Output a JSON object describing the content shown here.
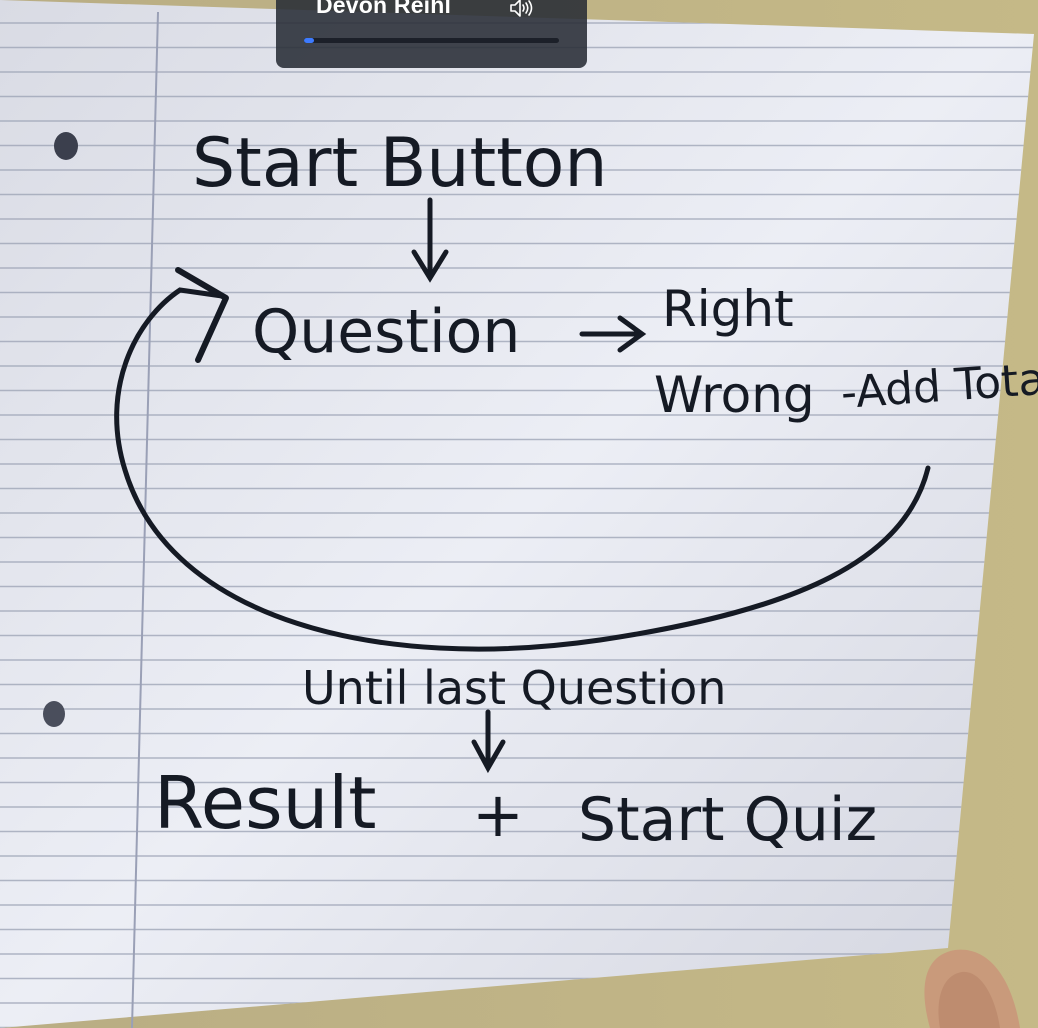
{
  "video": {
    "participant_name": "Devon Reihl",
    "progress_percent": 4
  },
  "icons": {
    "speaker": "speaker-volume-icon"
  },
  "colors": {
    "background": "#b9ad84",
    "paper": "#e6e7ef",
    "ink": "#151a24",
    "accent": "#3d7bff"
  },
  "sketch": {
    "start_button": "Start Button",
    "question": "Question",
    "right": "Right",
    "wrong": "Wrong",
    "add_total": "-Add Total",
    "until_last_question": "Until last Question",
    "result": "Result",
    "and": "+",
    "start_quiz": "Start Quiz"
  }
}
